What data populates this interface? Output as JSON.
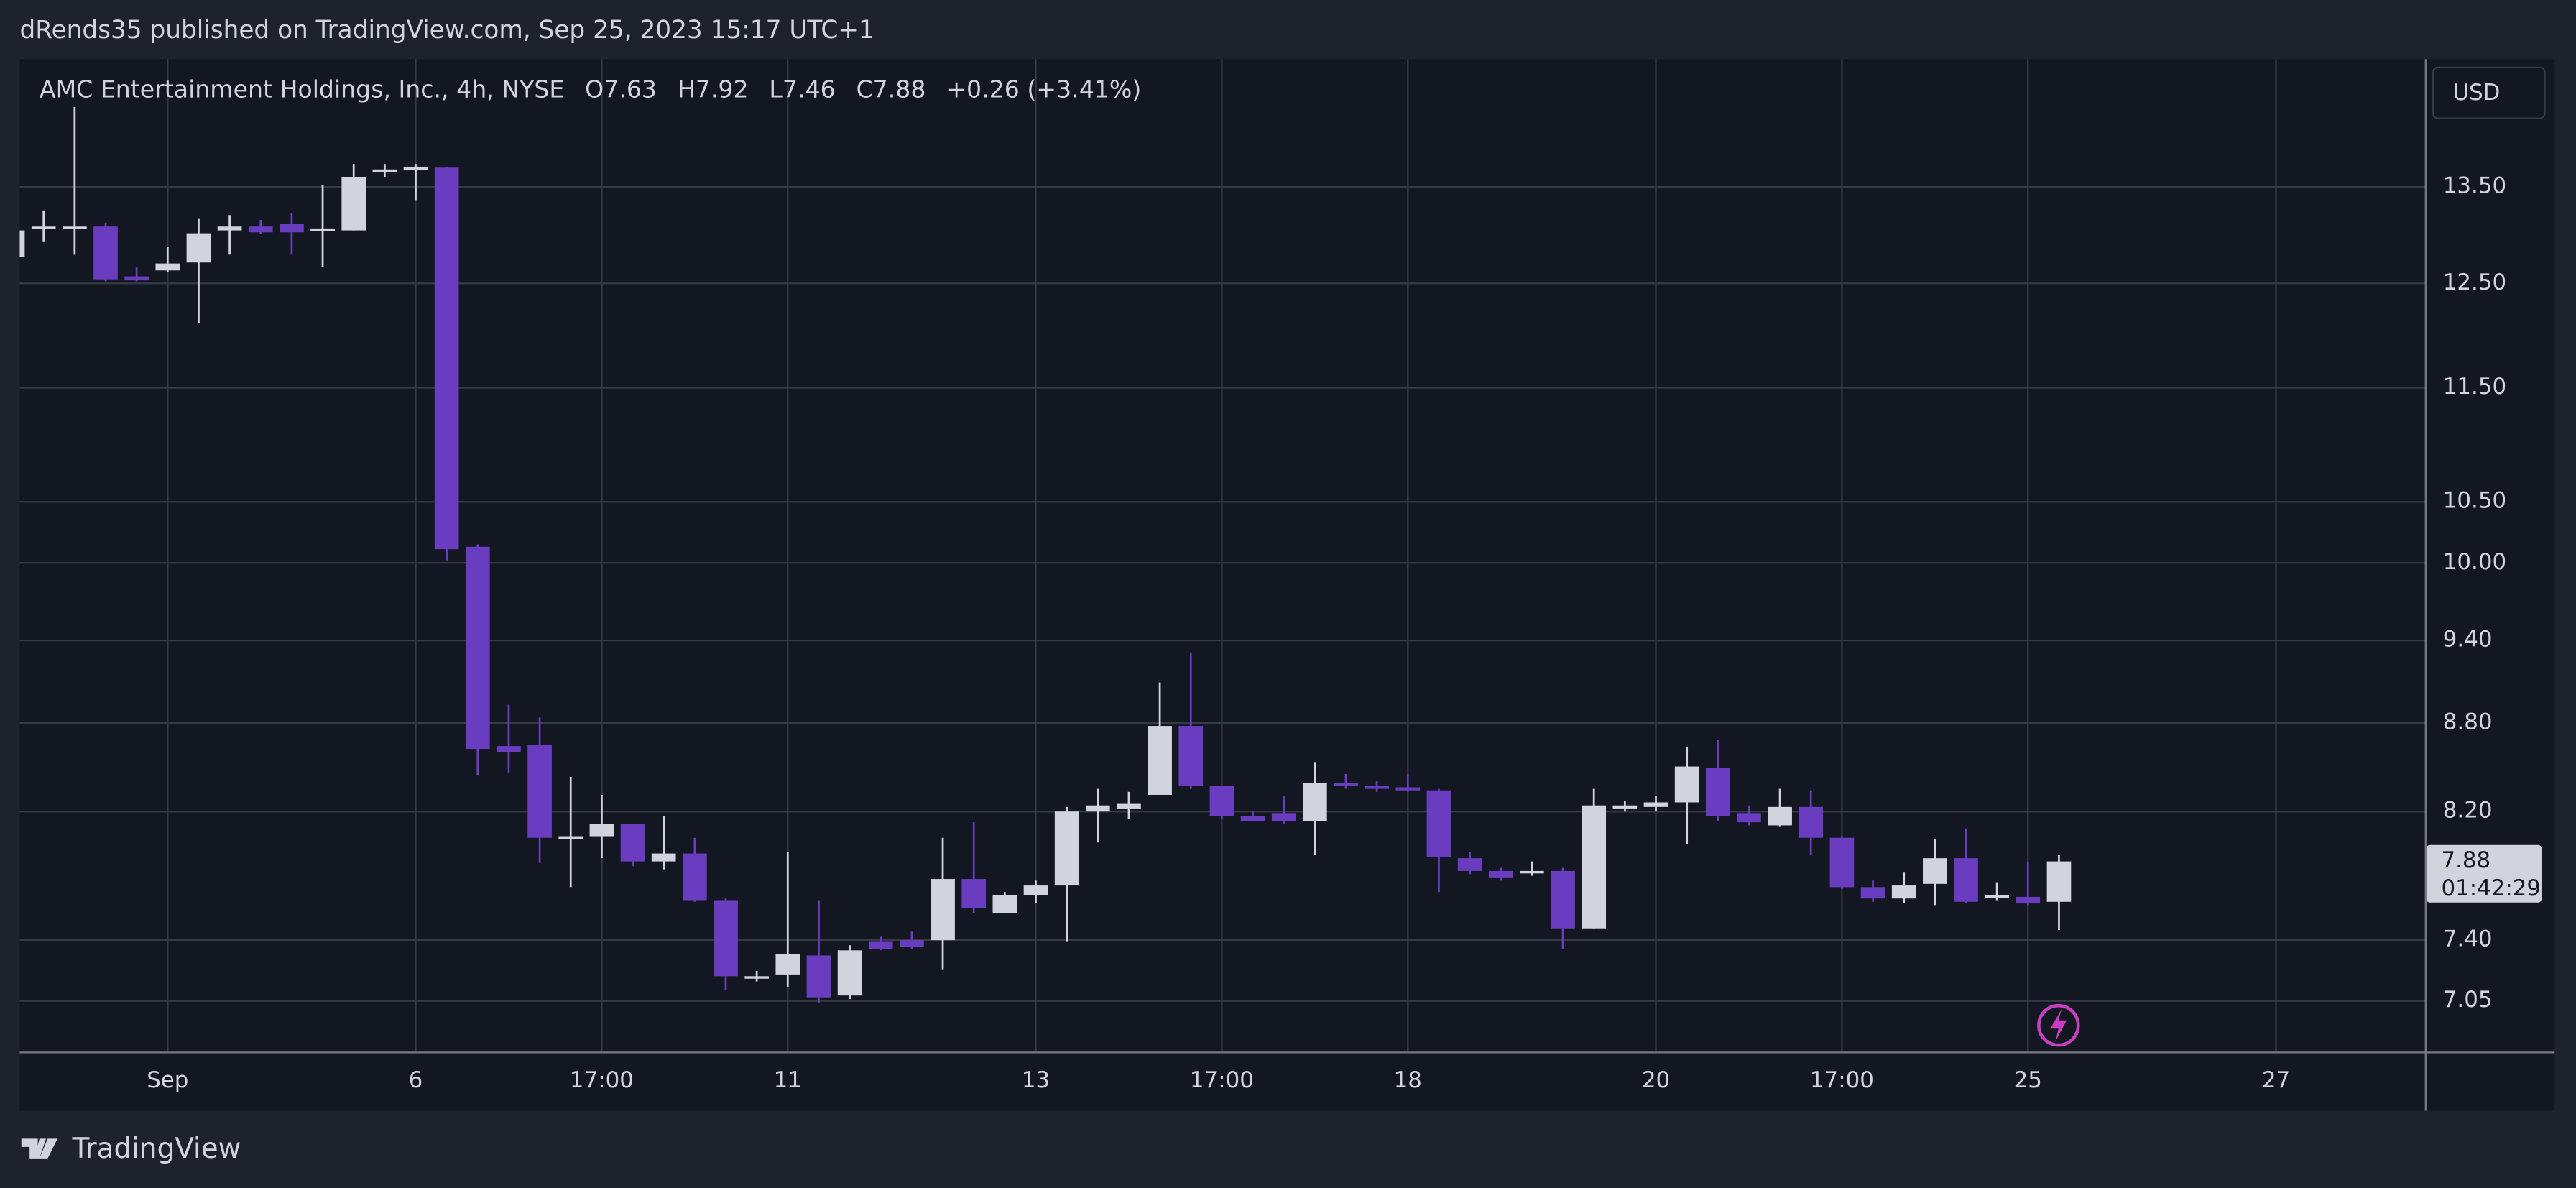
{
  "header": {
    "publisher": "dRends35 published on TradingView.com, Sep 25, 2023 15:17 UTC+1",
    "logo": "TradingView"
  },
  "chart_data": {
    "type": "candlestick",
    "title": "AMC Entertainment Holdings, Inc., 4h, NYSE",
    "legend_values": [
      "O7.63",
      "H7.92",
      "L7.46",
      "C7.88",
      "+0.26 (+3.41%)"
    ],
    "currency": "USD",
    "last_price_label": "7.88",
    "countdown": "01:42:29",
    "x": [
      0,
      1,
      2,
      3,
      4,
      5,
      6,
      7,
      8,
      9,
      10,
      11,
      12,
      13,
      14,
      15,
      16,
      17,
      18,
      19,
      20,
      21,
      22,
      23,
      24,
      25,
      26,
      27,
      28,
      29,
      30,
      31,
      32,
      33,
      34,
      35,
      36,
      37,
      38,
      39,
      40,
      41,
      42,
      43,
      44,
      45,
      46,
      47,
      48,
      49,
      50,
      51,
      52,
      53,
      54,
      55,
      56,
      57,
      58,
      59,
      60,
      61,
      62,
      63,
      64,
      65,
      66
    ],
    "open": [
      12.77,
      13.06,
      13.06,
      13.08,
      12.57,
      12.63,
      12.71,
      13.04,
      13.08,
      13.11,
      13.04,
      13.04,
      13.66,
      13.68,
      13.71,
      10.13,
      8.64,
      8.65,
      8.02,
      8.04,
      8.12,
      7.88,
      7.93,
      7.64,
      7.18,
      7.2,
      7.31,
      7.08,
      7.39,
      7.4,
      7.4,
      7.77,
      7.56,
      7.67,
      7.73,
      8.2,
      8.22,
      8.31,
      8.78,
      8.37,
      8.17,
      8.19,
      8.14,
      8.39,
      8.37,
      8.36,
      8.34,
      7.9,
      7.82,
      7.81,
      7.82,
      7.47,
      8.22,
      8.23,
      8.26,
      8.49,
      8.19,
      8.11,
      8.23,
      8.03,
      7.72,
      7.65,
      7.74,
      7.9,
      7.66,
      7.66,
      7.63
    ],
    "high": [
      13.06,
      13.25,
      14.39,
      13.12,
      12.66,
      12.87,
      13.16,
      13.2,
      13.15,
      13.22,
      13.52,
      13.75,
      13.75,
      13.75,
      13.72,
      10.15,
      8.93,
      8.84,
      8.43,
      8.31,
      8.12,
      8.17,
      8.03,
      7.65,
      7.22,
      7.94,
      7.64,
      7.37,
      7.42,
      7.45,
      8.03,
      8.13,
      7.69,
      7.76,
      8.23,
      8.35,
      8.33,
      9.09,
      9.31,
      8.37,
      8.2,
      8.3,
      8.53,
      8.45,
      8.4,
      8.45,
      8.35,
      7.94,
      7.84,
      7.88,
      7.84,
      8.35,
      8.27,
      8.3,
      8.63,
      8.68,
      8.24,
      8.35,
      8.34,
      8.04,
      7.76,
      7.81,
      8.02,
      8.09,
      7.75,
      7.88,
      7.92
    ],
    "low": [
      12.75,
      12.92,
      12.79,
      12.52,
      12.52,
      12.61,
      12.11,
      12.79,
      13.0,
      12.79,
      12.66,
      13.04,
      13.61,
      13.36,
      10.02,
      8.44,
      8.46,
      7.87,
      7.72,
      7.9,
      7.85,
      7.83,
      7.63,
      7.11,
      7.16,
      7.13,
      7.04,
      7.06,
      7.34,
      7.35,
      7.23,
      7.56,
      7.56,
      7.62,
      7.39,
      8.0,
      8.15,
      8.31,
      8.35,
      8.15,
      8.14,
      8.12,
      7.92,
      8.35,
      8.33,
      8.33,
      7.69,
      7.8,
      7.76,
      7.79,
      7.35,
      7.47,
      8.2,
      8.2,
      7.99,
      8.14,
      8.11,
      8.1,
      7.92,
      7.71,
      7.63,
      7.62,
      7.61,
      7.62,
      7.64,
      7.61,
      7.46
    ],
    "close": [
      13.04,
      13.08,
      13.08,
      12.54,
      12.53,
      12.7,
      13.01,
      13.08,
      13.02,
      13.02,
      13.06,
      13.61,
      13.69,
      13.72,
      10.11,
      8.62,
      8.6,
      8.03,
      8.04,
      8.12,
      7.88,
      7.93,
      7.64,
      7.19,
      7.19,
      7.32,
      7.07,
      7.34,
      7.35,
      7.36,
      7.77,
      7.59,
      7.67,
      7.73,
      8.2,
      8.24,
      8.25,
      8.78,
      8.37,
      8.17,
      8.14,
      8.14,
      8.39,
      8.37,
      8.35,
      8.34,
      7.91,
      7.82,
      7.78,
      7.82,
      7.47,
      8.24,
      8.24,
      8.26,
      8.5,
      8.17,
      8.13,
      8.23,
      8.03,
      7.72,
      7.65,
      7.73,
      7.9,
      7.63,
      7.67,
      7.62,
      7.88
    ],
    "up_color": "#d1d4dc",
    "down_color": "#6a3dc0",
    "log_scale": true,
    "grid": true,
    "xlim": [
      0.23,
      77.8
    ],
    "ylim": [
      6.77,
      14.95
    ],
    "xticks": [
      {
        "value": 5,
        "label": "Sep"
      },
      {
        "value": 13,
        "label": "6"
      },
      {
        "value": 19,
        "label": "17:00"
      },
      {
        "value": 25,
        "label": "11"
      },
      {
        "value": 33,
        "label": "13"
      },
      {
        "value": 39,
        "label": "17:00"
      },
      {
        "value": 45,
        "label": "18"
      },
      {
        "value": 53,
        "label": "20"
      },
      {
        "value": 59,
        "label": "17:00"
      },
      {
        "value": 65,
        "label": "25"
      },
      {
        "value": 73,
        "label": "27"
      }
    ],
    "yticks": [
      {
        "value": 13.5,
        "label": "13.50"
      },
      {
        "value": 12.5,
        "label": "12.50"
      },
      {
        "value": 11.5,
        "label": "11.50"
      },
      {
        "value": 10.5,
        "label": "10.50"
      },
      {
        "value": 10,
        "label": "10.00"
      },
      {
        "value": 9.4,
        "label": "9.40"
      },
      {
        "value": 8.8,
        "label": "8.80"
      },
      {
        "value": 8.2,
        "label": "8.20"
      },
      {
        "value": 7.4,
        "label": "7.40"
      },
      {
        "value": 7.05,
        "label": "7.05"
      }
    ]
  }
}
